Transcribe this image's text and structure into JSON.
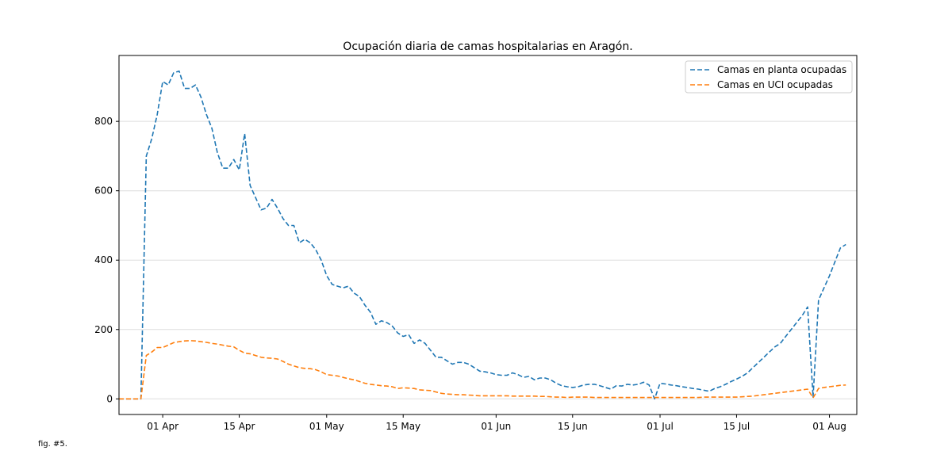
{
  "caption": "fig. #5.",
  "chart_data": {
    "type": "line",
    "title": "Ocupación diaria de camas hospitalarias en Aragón.",
    "xlabel": "",
    "ylabel": "",
    "x_type": "date",
    "xlim": [
      "2020-03-24",
      "2020-08-06"
    ],
    "ylim": [
      -45,
      990
    ],
    "yticks": [
      0,
      200,
      400,
      600,
      800
    ],
    "xticks": [
      {
        "date": "2020-04-01",
        "label": "01 Apr"
      },
      {
        "date": "2020-04-15",
        "label": "15 Apr"
      },
      {
        "date": "2020-05-01",
        "label": "01 May"
      },
      {
        "date": "2020-05-15",
        "label": "15 May"
      },
      {
        "date": "2020-06-01",
        "label": "01 Jun"
      },
      {
        "date": "2020-06-15",
        "label": "15 Jun"
      },
      {
        "date": "2020-07-01",
        "label": "01 Jul"
      },
      {
        "date": "2020-07-15",
        "label": "15 Jul"
      },
      {
        "date": "2020-08-01",
        "label": "01 Aug"
      }
    ],
    "grid": "horizontal",
    "legend_position": "top-right",
    "series": [
      {
        "name": "Camas en planta ocupadas",
        "color": "#1f77b4",
        "linestyle": "dashed",
        "points": [
          [
            "2020-03-24",
            0
          ],
          [
            "2020-03-27",
            0
          ],
          [
            "2020-03-28",
            0
          ],
          [
            "2020-03-29",
            700
          ],
          [
            "2020-03-30",
            750
          ],
          [
            "2020-03-31",
            820
          ],
          [
            "2020-04-01",
            915
          ],
          [
            "2020-04-02",
            905
          ],
          [
            "2020-04-03",
            940
          ],
          [
            "2020-04-04",
            945
          ],
          [
            "2020-04-05",
            895
          ],
          [
            "2020-04-06",
            895
          ],
          [
            "2020-04-07",
            905
          ],
          [
            "2020-04-08",
            870
          ],
          [
            "2020-04-09",
            820
          ],
          [
            "2020-04-10",
            780
          ],
          [
            "2020-04-11",
            710
          ],
          [
            "2020-04-12",
            665
          ],
          [
            "2020-04-13",
            665
          ],
          [
            "2020-04-14",
            690
          ],
          [
            "2020-04-15",
            660
          ],
          [
            "2020-04-16",
            765
          ],
          [
            "2020-04-17",
            615
          ],
          [
            "2020-04-18",
            580
          ],
          [
            "2020-04-19",
            545
          ],
          [
            "2020-04-20",
            550
          ],
          [
            "2020-04-21",
            575
          ],
          [
            "2020-04-22",
            550
          ],
          [
            "2020-04-23",
            520
          ],
          [
            "2020-04-24",
            500
          ],
          [
            "2020-04-25",
            500
          ],
          [
            "2020-04-26",
            450
          ],
          [
            "2020-04-27",
            460
          ],
          [
            "2020-04-28",
            450
          ],
          [
            "2020-04-29",
            430
          ],
          [
            "2020-04-30",
            400
          ],
          [
            "2020-05-01",
            355
          ],
          [
            "2020-05-02",
            330
          ],
          [
            "2020-05-03",
            325
          ],
          [
            "2020-05-04",
            320
          ],
          [
            "2020-05-05",
            325
          ],
          [
            "2020-05-06",
            305
          ],
          [
            "2020-05-07",
            295
          ],
          [
            "2020-05-08",
            270
          ],
          [
            "2020-05-09",
            250
          ],
          [
            "2020-05-10",
            215
          ],
          [
            "2020-05-11",
            225
          ],
          [
            "2020-05-12",
            220
          ],
          [
            "2020-05-13",
            210
          ],
          [
            "2020-05-14",
            190
          ],
          [
            "2020-05-15",
            180
          ],
          [
            "2020-05-16",
            185
          ],
          [
            "2020-05-17",
            160
          ],
          [
            "2020-05-18",
            170
          ],
          [
            "2020-05-19",
            160
          ],
          [
            "2020-05-20",
            140
          ],
          [
            "2020-05-21",
            120
          ],
          [
            "2020-05-22",
            120
          ],
          [
            "2020-05-23",
            110
          ],
          [
            "2020-05-24",
            100
          ],
          [
            "2020-05-25",
            105
          ],
          [
            "2020-05-26",
            105
          ],
          [
            "2020-05-27",
            100
          ],
          [
            "2020-05-28",
            90
          ],
          [
            "2020-05-29",
            80
          ],
          [
            "2020-05-30",
            78
          ],
          [
            "2020-05-31",
            75
          ],
          [
            "2020-06-01",
            70
          ],
          [
            "2020-06-02",
            68
          ],
          [
            "2020-06-03",
            68
          ],
          [
            "2020-06-04",
            75
          ],
          [
            "2020-06-05",
            70
          ],
          [
            "2020-06-06",
            62
          ],
          [
            "2020-06-07",
            65
          ],
          [
            "2020-06-08",
            55
          ],
          [
            "2020-06-09",
            60
          ],
          [
            "2020-06-10",
            60
          ],
          [
            "2020-06-11",
            55
          ],
          [
            "2020-06-12",
            45
          ],
          [
            "2020-06-13",
            38
          ],
          [
            "2020-06-14",
            35
          ],
          [
            "2020-06-15",
            33
          ],
          [
            "2020-06-16",
            35
          ],
          [
            "2020-06-17",
            40
          ],
          [
            "2020-06-18",
            42
          ],
          [
            "2020-06-19",
            42
          ],
          [
            "2020-06-20",
            38
          ],
          [
            "2020-06-21",
            33
          ],
          [
            "2020-06-22",
            28
          ],
          [
            "2020-06-23",
            38
          ],
          [
            "2020-06-24",
            37
          ],
          [
            "2020-06-25",
            42
          ],
          [
            "2020-06-26",
            40
          ],
          [
            "2020-06-27",
            42
          ],
          [
            "2020-06-28",
            48
          ],
          [
            "2020-06-29",
            40
          ],
          [
            "2020-06-30",
            0
          ],
          [
            "2020-07-01",
            45
          ],
          [
            "2020-07-02",
            43
          ],
          [
            "2020-07-03",
            40
          ],
          [
            "2020-07-04",
            38
          ],
          [
            "2020-07-05",
            35
          ],
          [
            "2020-07-06",
            33
          ],
          [
            "2020-07-07",
            30
          ],
          [
            "2020-07-08",
            28
          ],
          [
            "2020-07-09",
            25
          ],
          [
            "2020-07-10",
            22
          ],
          [
            "2020-07-11",
            30
          ],
          [
            "2020-07-12",
            35
          ],
          [
            "2020-07-13",
            42
          ],
          [
            "2020-07-14",
            50
          ],
          [
            "2020-07-15",
            57
          ],
          [
            "2020-07-16",
            65
          ],
          [
            "2020-07-17",
            75
          ],
          [
            "2020-07-18",
            90
          ],
          [
            "2020-07-19",
            105
          ],
          [
            "2020-07-20",
            120
          ],
          [
            "2020-07-21",
            135
          ],
          [
            "2020-07-22",
            150
          ],
          [
            "2020-07-23",
            160
          ],
          [
            "2020-07-24",
            180
          ],
          [
            "2020-07-25",
            200
          ],
          [
            "2020-07-26",
            220
          ],
          [
            "2020-07-27",
            240
          ],
          [
            "2020-07-28",
            265
          ],
          [
            "2020-07-29",
            5
          ],
          [
            "2020-07-30",
            285
          ],
          [
            "2020-07-31",
            320
          ],
          [
            "2020-08-01",
            355
          ],
          [
            "2020-08-02",
            395
          ],
          [
            "2020-08-03",
            435
          ],
          [
            "2020-08-04",
            445
          ]
        ]
      },
      {
        "name": "Camas en UCI ocupadas",
        "color": "#ff7f0e",
        "linestyle": "dashed",
        "points": [
          [
            "2020-03-24",
            0
          ],
          [
            "2020-03-27",
            0
          ],
          [
            "2020-03-28",
            0
          ],
          [
            "2020-03-29",
            125
          ],
          [
            "2020-03-30",
            135
          ],
          [
            "2020-03-31",
            148
          ],
          [
            "2020-04-01",
            148
          ],
          [
            "2020-04-02",
            155
          ],
          [
            "2020-04-03",
            162
          ],
          [
            "2020-04-04",
            165
          ],
          [
            "2020-04-05",
            167
          ],
          [
            "2020-04-06",
            168
          ],
          [
            "2020-04-07",
            167
          ],
          [
            "2020-04-08",
            165
          ],
          [
            "2020-04-09",
            163
          ],
          [
            "2020-04-10",
            160
          ],
          [
            "2020-04-11",
            158
          ],
          [
            "2020-04-12",
            155
          ],
          [
            "2020-04-13",
            152
          ],
          [
            "2020-04-14",
            150
          ],
          [
            "2020-04-15",
            140
          ],
          [
            "2020-04-16",
            132
          ],
          [
            "2020-04-17",
            130
          ],
          [
            "2020-04-18",
            125
          ],
          [
            "2020-04-19",
            120
          ],
          [
            "2020-04-20",
            118
          ],
          [
            "2020-04-21",
            117
          ],
          [
            "2020-04-22",
            115
          ],
          [
            "2020-04-23",
            108
          ],
          [
            "2020-04-24",
            100
          ],
          [
            "2020-04-25",
            95
          ],
          [
            "2020-04-26",
            90
          ],
          [
            "2020-04-27",
            88
          ],
          [
            "2020-04-28",
            87
          ],
          [
            "2020-04-29",
            84
          ],
          [
            "2020-04-30",
            78
          ],
          [
            "2020-05-01",
            70
          ],
          [
            "2020-05-02",
            68
          ],
          [
            "2020-05-03",
            66
          ],
          [
            "2020-05-04",
            62
          ],
          [
            "2020-05-05",
            58
          ],
          [
            "2020-05-06",
            55
          ],
          [
            "2020-05-07",
            50
          ],
          [
            "2020-05-08",
            45
          ],
          [
            "2020-05-09",
            42
          ],
          [
            "2020-05-10",
            40
          ],
          [
            "2020-05-11",
            38
          ],
          [
            "2020-05-12",
            37
          ],
          [
            "2020-05-13",
            35
          ],
          [
            "2020-05-14",
            30
          ],
          [
            "2020-05-15",
            32
          ],
          [
            "2020-05-16",
            31
          ],
          [
            "2020-05-17",
            30
          ],
          [
            "2020-05-18",
            26
          ],
          [
            "2020-05-19",
            25
          ],
          [
            "2020-05-20",
            24
          ],
          [
            "2020-05-21",
            20
          ],
          [
            "2020-05-22",
            16
          ],
          [
            "2020-05-23",
            14
          ],
          [
            "2020-05-24",
            13
          ],
          [
            "2020-05-25",
            12
          ],
          [
            "2020-05-26",
            12
          ],
          [
            "2020-05-27",
            11
          ],
          [
            "2020-05-28",
            10
          ],
          [
            "2020-05-29",
            9
          ],
          [
            "2020-05-30",
            9
          ],
          [
            "2020-05-31",
            9
          ],
          [
            "2020-06-01",
            9
          ],
          [
            "2020-06-02",
            9
          ],
          [
            "2020-06-03",
            9
          ],
          [
            "2020-06-04",
            8
          ],
          [
            "2020-06-05",
            8
          ],
          [
            "2020-06-06",
            8
          ],
          [
            "2020-06-07",
            8
          ],
          [
            "2020-06-08",
            8
          ],
          [
            "2020-06-09",
            7
          ],
          [
            "2020-06-10",
            7
          ],
          [
            "2020-06-11",
            6
          ],
          [
            "2020-06-12",
            5
          ],
          [
            "2020-06-13",
            5
          ],
          [
            "2020-06-14",
            4
          ],
          [
            "2020-06-15",
            5
          ],
          [
            "2020-06-16",
            5
          ],
          [
            "2020-06-17",
            5
          ],
          [
            "2020-06-18",
            5
          ],
          [
            "2020-06-19",
            4
          ],
          [
            "2020-06-20",
            4
          ],
          [
            "2020-06-21",
            4
          ],
          [
            "2020-06-22",
            4
          ],
          [
            "2020-06-23",
            4
          ],
          [
            "2020-06-24",
            4
          ],
          [
            "2020-06-25",
            4
          ],
          [
            "2020-06-26",
            4
          ],
          [
            "2020-06-27",
            4
          ],
          [
            "2020-06-28",
            4
          ],
          [
            "2020-06-29",
            4
          ],
          [
            "2020-06-30",
            4
          ],
          [
            "2020-07-01",
            4
          ],
          [
            "2020-07-02",
            4
          ],
          [
            "2020-07-03",
            4
          ],
          [
            "2020-07-04",
            4
          ],
          [
            "2020-07-05",
            4
          ],
          [
            "2020-07-06",
            4
          ],
          [
            "2020-07-07",
            4
          ],
          [
            "2020-07-08",
            4
          ],
          [
            "2020-07-09",
            5
          ],
          [
            "2020-07-10",
            5
          ],
          [
            "2020-07-11",
            5
          ],
          [
            "2020-07-12",
            5
          ],
          [
            "2020-07-13",
            5
          ],
          [
            "2020-07-14",
            5
          ],
          [
            "2020-07-15",
            5
          ],
          [
            "2020-07-16",
            6
          ],
          [
            "2020-07-17",
            7
          ],
          [
            "2020-07-18",
            8
          ],
          [
            "2020-07-19",
            10
          ],
          [
            "2020-07-20",
            12
          ],
          [
            "2020-07-21",
            14
          ],
          [
            "2020-07-22",
            16
          ],
          [
            "2020-07-23",
            18
          ],
          [
            "2020-07-24",
            20
          ],
          [
            "2020-07-25",
            22
          ],
          [
            "2020-07-26",
            24
          ],
          [
            "2020-07-27",
            26
          ],
          [
            "2020-07-28",
            28
          ],
          [
            "2020-07-29",
            3
          ],
          [
            "2020-07-30",
            30
          ],
          [
            "2020-07-31",
            33
          ],
          [
            "2020-08-01",
            35
          ],
          [
            "2020-08-02",
            37
          ],
          [
            "2020-08-03",
            39
          ],
          [
            "2020-08-04",
            40
          ]
        ]
      }
    ]
  }
}
